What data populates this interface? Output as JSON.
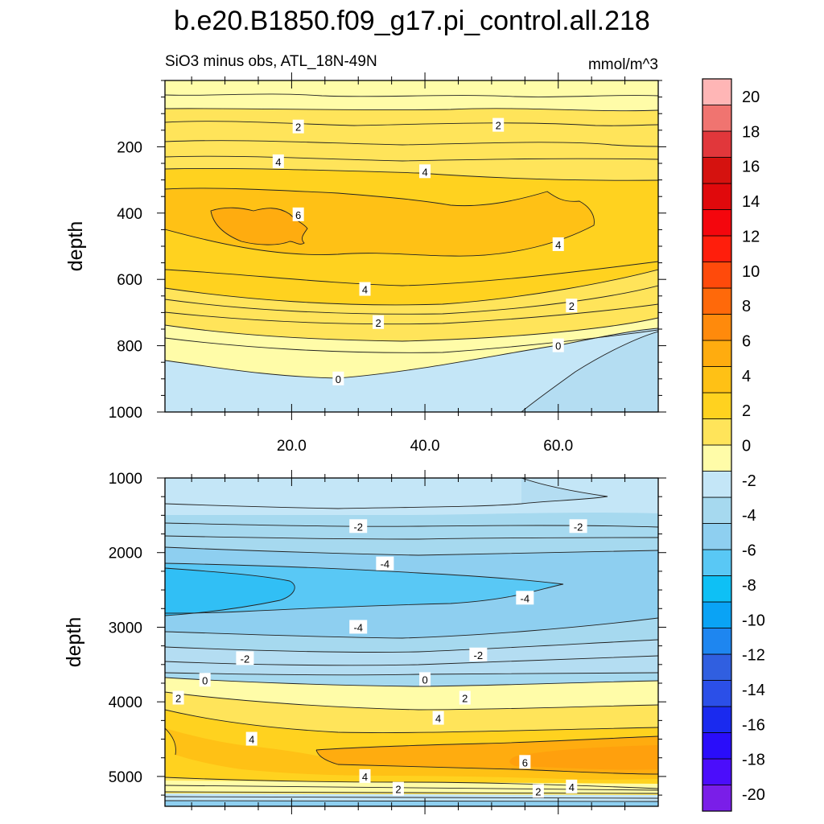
{
  "chart_data": {
    "type": "contour",
    "title": "b.e20.B1850.f09_g17.pi_control.all.218",
    "subtitle_left": "SiO3 minus obs, ATL_18N-49N",
    "subtitle_right": "mmol/m^3",
    "xlim": [
      1,
      75
    ],
    "x_ticks": [
      20,
      40,
      60
    ],
    "x_tick_labels": [
      "20.0",
      "40.0",
      "60.0"
    ],
    "panels": [
      {
        "name": "upper",
        "ylabel": "depth",
        "ylim": [
          0,
          1000
        ],
        "y_ticks": [
          200,
          400,
          600,
          800,
          1000
        ],
        "y_tick_labels": [
          "200",
          "400",
          "600",
          "800",
          "1000"
        ],
        "contour_labels": [
          {
            "x": 21,
            "y": 140,
            "text": "2"
          },
          {
            "x": 51,
            "y": 135,
            "text": "2"
          },
          {
            "x": 18,
            "y": 245,
            "text": "4"
          },
          {
            "x": 40,
            "y": 275,
            "text": "4"
          },
          {
            "x": 21,
            "y": 405,
            "text": "6"
          },
          {
            "x": 60,
            "y": 495,
            "text": "4"
          },
          {
            "x": 31,
            "y": 630,
            "text": "4"
          },
          {
            "x": 62,
            "y": 680,
            "text": "2"
          },
          {
            "x": 33,
            "y": 730,
            "text": "2"
          },
          {
            "x": 60,
            "y": 800,
            "text": "0"
          },
          {
            "x": 27,
            "y": 900,
            "text": "0"
          }
        ]
      },
      {
        "name": "lower",
        "ylabel": "depth",
        "ylim": [
          1000,
          5400
        ],
        "y_ticks": [
          1000,
          2000,
          3000,
          4000,
          5000
        ],
        "y_tick_labels": [
          "1000",
          "2000",
          "3000",
          "4000",
          "5000"
        ],
        "contour_labels": [
          {
            "x": 30,
            "y": 1650,
            "text": "-2"
          },
          {
            "x": 63,
            "y": 1650,
            "text": "-2"
          },
          {
            "x": 34,
            "y": 2150,
            "text": "-4"
          },
          {
            "x": 55,
            "y": 2610,
            "text": "-4"
          },
          {
            "x": 30,
            "y": 3000,
            "text": "-4"
          },
          {
            "x": 13,
            "y": 3420,
            "text": "-2"
          },
          {
            "x": 48,
            "y": 3370,
            "text": "-2"
          },
          {
            "x": 7,
            "y": 3710,
            "text": "0"
          },
          {
            "x": 40,
            "y": 3700,
            "text": "0"
          },
          {
            "x": 3,
            "y": 3950,
            "text": "2"
          },
          {
            "x": 46,
            "y": 3950,
            "text": "2"
          },
          {
            "x": 14,
            "y": 4500,
            "text": "4"
          },
          {
            "x": 42,
            "y": 4220,
            "text": "4"
          },
          {
            "x": 55,
            "y": 4810,
            "text": "6"
          },
          {
            "x": 31,
            "y": 5000,
            "text": "4"
          },
          {
            "x": 62,
            "y": 5140,
            "text": "4"
          },
          {
            "x": 36,
            "y": 5170,
            "text": "2"
          },
          {
            "x": 57,
            "y": 5200,
            "text": "2"
          }
        ]
      }
    ],
    "levels": [
      -20,
      -18,
      -16,
      -14,
      -12,
      -10,
      -8,
      -6,
      -4,
      -2,
      0,
      2,
      4,
      6,
      8,
      10,
      12,
      14,
      16,
      18,
      20
    ],
    "colorbar_labels": [
      "20",
      "18",
      "16",
      "14",
      "12",
      "10",
      "8",
      "6",
      "4",
      "2",
      "0",
      "-2",
      "-4",
      "-6",
      "-8",
      "-10",
      "-12",
      "-14",
      "-16",
      "-18",
      "-20"
    ],
    "colors": [
      "#7a1ee8",
      "#4b0dfb",
      "#2a0dfa",
      "#1a2aef",
      "#2b4fe8",
      "#305fe0",
      "#1e86f0",
      "#0aa3f5",
      "#0ec0f5",
      "#59c8f5",
      "#8ecff0",
      "#a6d9ef",
      "#c4e6f7",
      "#fffca8",
      "#ffe45a",
      "#ffd21f",
      "#ffc115",
      "#ffac0f",
      "#ff8a0c",
      "#ff690a",
      "#ff4a0b",
      "#ff1e0c",
      "#f4060d",
      "#e0090c",
      "#d5120f",
      "#e1373b",
      "#f07470",
      "#ffb6b6"
    ]
  }
}
